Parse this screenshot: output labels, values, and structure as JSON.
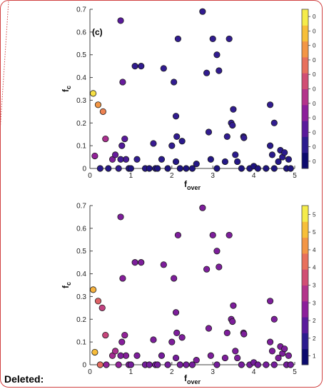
{
  "footer_label": "Deleted:",
  "colors": {
    "frame": "#d04040",
    "marker_edge": "#1a1a1a",
    "axis": "#444444"
  },
  "chart_data": [
    {
      "type": "scatter",
      "panel_label": "(c)",
      "xlabel": "f_over",
      "ylabel": "f_c",
      "xlim": [
        0,
        5
      ],
      "ylim": [
        0,
        0.7
      ],
      "xticks": [
        0,
        1,
        2,
        3,
        4,
        5
      ],
      "yticks": [
        0,
        0.1,
        0.2,
        0.3,
        0.4,
        0.5,
        0.6,
        0.7
      ],
      "colorbar_ticks": [
        "0",
        "0",
        "0",
        "0",
        "0",
        "0",
        "0",
        "0",
        "0",
        "0",
        "0"
      ],
      "colormap": [
        "#0c0a6e",
        "#2d1c8f",
        "#5a1a9c",
        "#8c1f9b",
        "#b3338b",
        "#d14e74",
        "#e8705c",
        "#f39645",
        "#f7bf39",
        "#f5ec4a"
      ],
      "points": [
        {
          "x": 0.08,
          "y": 0.33,
          "c": 0.97
        },
        {
          "x": 0.2,
          "y": 0.28,
          "c": 0.78
        },
        {
          "x": 0.32,
          "y": 0.25,
          "c": 0.72
        },
        {
          "x": 0.38,
          "y": 0.13,
          "c": 0.42
        },
        {
          "x": 0.12,
          "y": 0.055,
          "c": 0.35
        },
        {
          "x": 0.25,
          "y": 0.0,
          "c": 0.1
        },
        {
          "x": 0.45,
          "y": 0.0,
          "c": 0.08
        },
        {
          "x": 0.55,
          "y": 0.04,
          "c": 0.3
        },
        {
          "x": 0.62,
          "y": 0.06,
          "c": 0.25
        },
        {
          "x": 0.7,
          "y": 0.0,
          "c": 0.12
        },
        {
          "x": 0.75,
          "y": 0.65,
          "c": 0.22
        },
        {
          "x": 0.8,
          "y": 0.38,
          "c": 0.25
        },
        {
          "x": 0.78,
          "y": 0.1,
          "c": 0.2
        },
        {
          "x": 0.85,
          "y": 0.13,
          "c": 0.22
        },
        {
          "x": 0.88,
          "y": 0.04,
          "c": 0.18
        },
        {
          "x": 0.75,
          "y": 0.04,
          "c": 0.16
        },
        {
          "x": 0.95,
          "y": 0.0,
          "c": 0.08
        },
        {
          "x": 1.0,
          "y": 0.0,
          "c": 0.06
        },
        {
          "x": 1.1,
          "y": 0.45,
          "c": 0.12
        },
        {
          "x": 1.25,
          "y": 0.45,
          "c": 0.12
        },
        {
          "x": 1.15,
          "y": 0.04,
          "c": 0.12
        },
        {
          "x": 1.35,
          "y": 0.0,
          "c": 0.08
        },
        {
          "x": 1.45,
          "y": 0.0,
          "c": 0.06
        },
        {
          "x": 1.55,
          "y": 0.11,
          "c": 0.14
        },
        {
          "x": 1.6,
          "y": 0.0,
          "c": 0.06
        },
        {
          "x": 1.65,
          "y": 0.0,
          "c": 0.06
        },
        {
          "x": 1.75,
          "y": 0.04,
          "c": 0.1
        },
        {
          "x": 1.8,
          "y": 0.44,
          "c": 0.12
        },
        {
          "x": 1.9,
          "y": 0.0,
          "c": 0.06
        },
        {
          "x": 2.0,
          "y": 0.1,
          "c": 0.12
        },
        {
          "x": 2.05,
          "y": 0.38,
          "c": 0.12
        },
        {
          "x": 2.1,
          "y": 0.23,
          "c": 0.12
        },
        {
          "x": 2.15,
          "y": 0.57,
          "c": 0.12
        },
        {
          "x": 2.12,
          "y": 0.14,
          "c": 0.12
        },
        {
          "x": 2.25,
          "y": 0.12,
          "c": 0.1
        },
        {
          "x": 2.1,
          "y": 0.03,
          "c": 0.08
        },
        {
          "x": 2.2,
          "y": 0.0,
          "c": 0.06
        },
        {
          "x": 2.35,
          "y": 0.0,
          "c": 0.06
        },
        {
          "x": 2.5,
          "y": 0.0,
          "c": 0.06
        },
        {
          "x": 2.6,
          "y": 0.02,
          "c": 0.08
        },
        {
          "x": 2.75,
          "y": 0.69,
          "c": 0.12
        },
        {
          "x": 2.85,
          "y": 0.42,
          "c": 0.12
        },
        {
          "x": 2.9,
          "y": 0.16,
          "c": 0.12
        },
        {
          "x": 2.95,
          "y": 0.04,
          "c": 0.08
        },
        {
          "x": 3.0,
          "y": 0.57,
          "c": 0.12
        },
        {
          "x": 3.1,
          "y": 0.5,
          "c": 0.12
        },
        {
          "x": 3.15,
          "y": 0.43,
          "c": 0.12
        },
        {
          "x": 3.1,
          "y": 0.0,
          "c": 0.06
        },
        {
          "x": 3.3,
          "y": 0.03,
          "c": 0.08
        },
        {
          "x": 3.35,
          "y": 0.14,
          "c": 0.12
        },
        {
          "x": 3.4,
          "y": 0.57,
          "c": 0.12
        },
        {
          "x": 3.45,
          "y": 0.2,
          "c": 0.12
        },
        {
          "x": 3.48,
          "y": 0.19,
          "c": 0.12
        },
        {
          "x": 3.5,
          "y": 0.26,
          "c": 0.12
        },
        {
          "x": 3.55,
          "y": 0.06,
          "c": 0.1
        },
        {
          "x": 3.6,
          "y": 0.03,
          "c": 0.08
        },
        {
          "x": 3.7,
          "y": 0.0,
          "c": 0.06
        },
        {
          "x": 3.75,
          "y": 0.14,
          "c": 0.12
        },
        {
          "x": 3.76,
          "y": 0.135,
          "c": 0.12
        },
        {
          "x": 3.9,
          "y": 0.0,
          "c": 0.06
        },
        {
          "x": 4.0,
          "y": 0.01,
          "c": 0.06
        },
        {
          "x": 4.1,
          "y": 0.0,
          "c": 0.06
        },
        {
          "x": 4.3,
          "y": 0.0,
          "c": 0.06
        },
        {
          "x": 4.4,
          "y": 0.28,
          "c": 0.12
        },
        {
          "x": 4.4,
          "y": 0.1,
          "c": 0.1
        },
        {
          "x": 4.45,
          "y": 0.06,
          "c": 0.1
        },
        {
          "x": 4.5,
          "y": 0.2,
          "c": 0.12
        },
        {
          "x": 4.5,
          "y": 0.0,
          "c": 0.06
        },
        {
          "x": 4.6,
          "y": 0.03,
          "c": 0.08
        },
        {
          "x": 4.65,
          "y": 0.08,
          "c": 0.1
        },
        {
          "x": 4.7,
          "y": 0.05,
          "c": 0.1
        },
        {
          "x": 4.75,
          "y": 0.07,
          "c": 0.1
        },
        {
          "x": 4.8,
          "y": 0.0,
          "c": 0.06
        },
        {
          "x": 4.85,
          "y": 0.04,
          "c": 0.08
        },
        {
          "x": 4.9,
          "y": 0.0,
          "c": 0.06
        }
      ]
    },
    {
      "type": "scatter",
      "panel_label": "",
      "xlabel": "f_over",
      "ylabel": "f_c",
      "xlim": [
        0,
        5
      ],
      "ylim": [
        0,
        0.7
      ],
      "xticks": [
        0,
        1,
        2,
        3,
        4,
        5
      ],
      "yticks": [
        0,
        0.1,
        0.2,
        0.3,
        0.4,
        0.5,
        0.6,
        0.7
      ],
      "colorbar_ticks": [
        "1",
        "2",
        "2",
        "3",
        "3",
        "4",
        "4",
        "5",
        "5"
      ],
      "colormap": [
        "#0c0a6e",
        "#2d1c8f",
        "#5a1a9c",
        "#8c1f9b",
        "#b3338b",
        "#d14e74",
        "#e8705c",
        "#f39645",
        "#f7bf39",
        "#f5ec4a"
      ],
      "points": [
        {
          "x": 0.08,
          "y": 0.33,
          "c": 0.85
        },
        {
          "x": 0.2,
          "y": 0.28,
          "c": 0.62
        },
        {
          "x": 0.3,
          "y": 0.25,
          "c": 0.5
        },
        {
          "x": 0.38,
          "y": 0.13,
          "c": 0.52
        },
        {
          "x": 0.12,
          "y": 0.055,
          "c": 0.88
        },
        {
          "x": 0.25,
          "y": 0.0,
          "c": 0.65
        },
        {
          "x": 0.4,
          "y": 0.0,
          "c": 0.35
        },
        {
          "x": 0.55,
          "y": 0.04,
          "c": 0.4
        },
        {
          "x": 0.62,
          "y": 0.06,
          "c": 0.42
        },
        {
          "x": 0.7,
          "y": 0.0,
          "c": 0.35
        },
        {
          "x": 0.75,
          "y": 0.65,
          "c": 0.3
        },
        {
          "x": 0.8,
          "y": 0.38,
          "c": 0.32
        },
        {
          "x": 0.78,
          "y": 0.1,
          "c": 0.32
        },
        {
          "x": 0.85,
          "y": 0.13,
          "c": 0.35
        },
        {
          "x": 0.88,
          "y": 0.04,
          "c": 0.32
        },
        {
          "x": 0.75,
          "y": 0.04,
          "c": 0.3
        },
        {
          "x": 0.95,
          "y": 0.0,
          "c": 0.3
        },
        {
          "x": 1.0,
          "y": 0.0,
          "c": 0.28
        },
        {
          "x": 1.1,
          "y": 0.45,
          "c": 0.3
        },
        {
          "x": 1.25,
          "y": 0.45,
          "c": 0.3
        },
        {
          "x": 1.15,
          "y": 0.04,
          "c": 0.3
        },
        {
          "x": 1.35,
          "y": 0.0,
          "c": 0.28
        },
        {
          "x": 1.45,
          "y": 0.0,
          "c": 0.28
        },
        {
          "x": 1.55,
          "y": 0.11,
          "c": 0.3
        },
        {
          "x": 1.6,
          "y": 0.0,
          "c": 0.28
        },
        {
          "x": 1.65,
          "y": 0.0,
          "c": 0.28
        },
        {
          "x": 1.75,
          "y": 0.04,
          "c": 0.28
        },
        {
          "x": 1.8,
          "y": 0.44,
          "c": 0.3
        },
        {
          "x": 1.9,
          "y": 0.0,
          "c": 0.28
        },
        {
          "x": 2.0,
          "y": 0.1,
          "c": 0.3
        },
        {
          "x": 2.05,
          "y": 0.38,
          "c": 0.3
        },
        {
          "x": 2.1,
          "y": 0.23,
          "c": 0.3
        },
        {
          "x": 2.15,
          "y": 0.57,
          "c": 0.3
        },
        {
          "x": 2.12,
          "y": 0.14,
          "c": 0.3
        },
        {
          "x": 2.25,
          "y": 0.12,
          "c": 0.3
        },
        {
          "x": 2.1,
          "y": 0.03,
          "c": 0.28
        },
        {
          "x": 2.2,
          "y": 0.0,
          "c": 0.28
        },
        {
          "x": 2.35,
          "y": 0.0,
          "c": 0.28
        },
        {
          "x": 2.5,
          "y": 0.0,
          "c": 0.28
        },
        {
          "x": 2.6,
          "y": 0.02,
          "c": 0.3
        },
        {
          "x": 2.75,
          "y": 0.69,
          "c": 0.3
        },
        {
          "x": 2.85,
          "y": 0.42,
          "c": 0.3
        },
        {
          "x": 2.9,
          "y": 0.16,
          "c": 0.3
        },
        {
          "x": 2.95,
          "y": 0.04,
          "c": 0.3
        },
        {
          "x": 3.0,
          "y": 0.57,
          "c": 0.3
        },
        {
          "x": 3.1,
          "y": 0.5,
          "c": 0.3
        },
        {
          "x": 3.15,
          "y": 0.43,
          "c": 0.3
        },
        {
          "x": 3.1,
          "y": 0.0,
          "c": 0.28
        },
        {
          "x": 3.3,
          "y": 0.03,
          "c": 0.3
        },
        {
          "x": 3.35,
          "y": 0.14,
          "c": 0.3
        },
        {
          "x": 3.4,
          "y": 0.57,
          "c": 0.3
        },
        {
          "x": 3.45,
          "y": 0.2,
          "c": 0.3
        },
        {
          "x": 3.48,
          "y": 0.19,
          "c": 0.3
        },
        {
          "x": 3.5,
          "y": 0.26,
          "c": 0.3
        },
        {
          "x": 3.55,
          "y": 0.06,
          "c": 0.3
        },
        {
          "x": 3.6,
          "y": 0.03,
          "c": 0.3
        },
        {
          "x": 3.7,
          "y": 0.0,
          "c": 0.28
        },
        {
          "x": 3.75,
          "y": 0.14,
          "c": 0.3
        },
        {
          "x": 3.76,
          "y": 0.135,
          "c": 0.3
        },
        {
          "x": 3.9,
          "y": 0.0,
          "c": 0.28
        },
        {
          "x": 4.0,
          "y": 0.01,
          "c": 0.28
        },
        {
          "x": 4.1,
          "y": 0.0,
          "c": 0.28
        },
        {
          "x": 4.3,
          "y": 0.0,
          "c": 0.28
        },
        {
          "x": 4.4,
          "y": 0.28,
          "c": 0.3
        },
        {
          "x": 4.4,
          "y": 0.1,
          "c": 0.3
        },
        {
          "x": 4.45,
          "y": 0.06,
          "c": 0.3
        },
        {
          "x": 4.5,
          "y": 0.2,
          "c": 0.3
        },
        {
          "x": 4.5,
          "y": 0.0,
          "c": 0.28
        },
        {
          "x": 4.6,
          "y": 0.03,
          "c": 0.3
        },
        {
          "x": 4.65,
          "y": 0.08,
          "c": 0.3
        },
        {
          "x": 4.7,
          "y": 0.05,
          "c": 0.3
        },
        {
          "x": 4.75,
          "y": 0.07,
          "c": 0.3
        },
        {
          "x": 4.8,
          "y": 0.0,
          "c": 0.28
        },
        {
          "x": 4.85,
          "y": 0.04,
          "c": 0.3
        },
        {
          "x": 4.9,
          "y": 0.0,
          "c": 0.28
        }
      ]
    }
  ]
}
